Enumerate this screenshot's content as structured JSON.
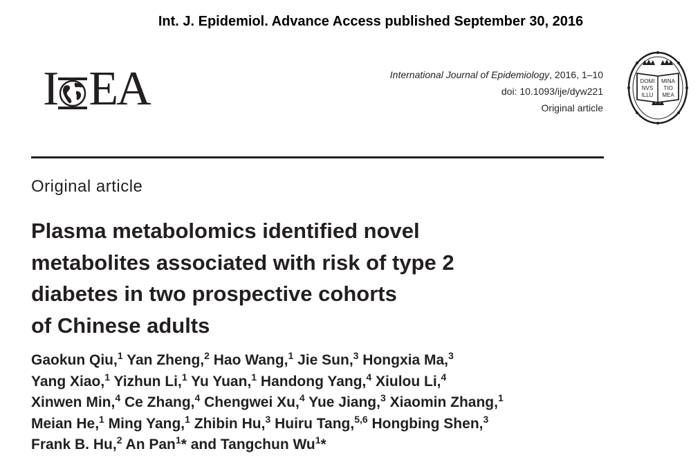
{
  "header": {
    "access_banner": "Int. J. Epidemiol. Advance Access published September 30, 2016",
    "journal_name": "International Journal of Epidemiology",
    "journal_pages": ", 2016, 1–10",
    "doi": "doi: 10.1093/ije/dyw221",
    "article_type": "Original article"
  },
  "logo": {
    "letters_left": "I",
    "letters_right": "EA",
    "icon": "globe-icon"
  },
  "seal": {
    "icon": "oxford-university-seal",
    "text_left": [
      "DOMI",
      "NVS",
      "ILLU"
    ],
    "text_right": [
      "MINA",
      "TIO",
      "MEA"
    ]
  },
  "article": {
    "section_label": "Original article",
    "title_lines": [
      "Plasma metabolomics identified novel",
      "metabolites associated with risk of type 2",
      "diabetes in two prospective cohorts",
      "of Chinese adults"
    ],
    "authors": [
      [
        {
          "name": "Gaokun Qiu,",
          "aff": "1"
        },
        {
          "name": "Yan Zheng,",
          "aff": "2"
        },
        {
          "name": "Hao Wang,",
          "aff": "1"
        },
        {
          "name": "Jie Sun,",
          "aff": "3"
        },
        {
          "name": "Hongxia Ma,",
          "aff": "3"
        }
      ],
      [
        {
          "name": "Yang Xiao,",
          "aff": "1"
        },
        {
          "name": "Yizhun Li,",
          "aff": "1"
        },
        {
          "name": "Yu Yuan,",
          "aff": "1"
        },
        {
          "name": "Handong Yang,",
          "aff": "4"
        },
        {
          "name": "Xiulou Li,",
          "aff": "4"
        }
      ],
      [
        {
          "name": "Xinwen Min,",
          "aff": "4"
        },
        {
          "name": "Ce Zhang,",
          "aff": "4"
        },
        {
          "name": "Chengwei Xu,",
          "aff": "4"
        },
        {
          "name": "Yue Jiang,",
          "aff": "3"
        },
        {
          "name": "Xiaomin Zhang,",
          "aff": "1"
        }
      ],
      [
        {
          "name": "Meian He,",
          "aff": "1"
        },
        {
          "name": "Ming Yang,",
          "aff": "1"
        },
        {
          "name": "Zhibin Hu,",
          "aff": "3"
        },
        {
          "name": "Huiru Tang,",
          "aff": "5,6"
        },
        {
          "name": "Hongbing Shen,",
          "aff": "3"
        }
      ],
      [
        {
          "name": "Frank B. Hu,",
          "aff": "2"
        },
        {
          "name": "An Pan",
          "aff": "1",
          "after": "* and"
        },
        {
          "name": "Tangchun Wu",
          "aff": "1",
          "after": "*"
        }
      ]
    ]
  }
}
